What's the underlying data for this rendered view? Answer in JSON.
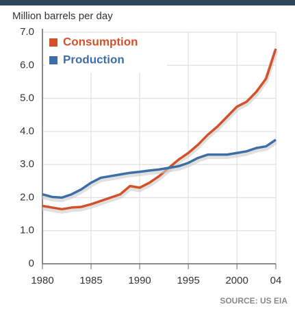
{
  "chart_data": {
    "type": "line",
    "y_label": "Million barrels per day",
    "source": "SOURCE: US EIA",
    "x": [
      1980,
      1981,
      1982,
      1983,
      1984,
      1985,
      1986,
      1987,
      1988,
      1989,
      1990,
      1991,
      1992,
      1993,
      1994,
      1995,
      1996,
      1997,
      1998,
      1999,
      2000,
      2001,
      2002,
      2003,
      2004
    ],
    "series": [
      {
        "name": "Consumption",
        "color": "#d2512a",
        "values": [
          1.75,
          1.7,
          1.65,
          1.7,
          1.72,
          1.8,
          1.9,
          2.0,
          2.1,
          2.35,
          2.3,
          2.45,
          2.65,
          2.9,
          3.15,
          3.35,
          3.6,
          3.9,
          4.15,
          4.45,
          4.75,
          4.9,
          5.2,
          5.6,
          6.5
        ]
      },
      {
        "name": "Production",
        "color": "#3d6ea5",
        "values": [
          2.1,
          2.02,
          2.0,
          2.1,
          2.25,
          2.45,
          2.6,
          2.65,
          2.7,
          2.75,
          2.78,
          2.82,
          2.85,
          2.9,
          2.95,
          3.05,
          3.2,
          3.3,
          3.3,
          3.3,
          3.35,
          3.4,
          3.5,
          3.55,
          3.75
        ]
      }
    ],
    "xlim": [
      1980,
      2004
    ],
    "ylim": [
      0,
      7
    ],
    "xticks": [
      1980,
      1985,
      1990,
      1995,
      2000,
      {
        "value": 2004,
        "label": "04"
      }
    ],
    "yticks": [
      {
        "value": 0,
        "label": "0"
      },
      {
        "value": 1,
        "label": "1.0"
      },
      {
        "value": 2,
        "label": "2.0"
      },
      {
        "value": 3,
        "label": "3.0"
      },
      {
        "value": 4,
        "label": "4.0"
      },
      {
        "value": 5,
        "label": "5.0"
      },
      {
        "value": 6,
        "label": "6.0"
      },
      {
        "value": 7,
        "label": "7.0"
      }
    ],
    "grid": true,
    "legend": "top-left"
  }
}
